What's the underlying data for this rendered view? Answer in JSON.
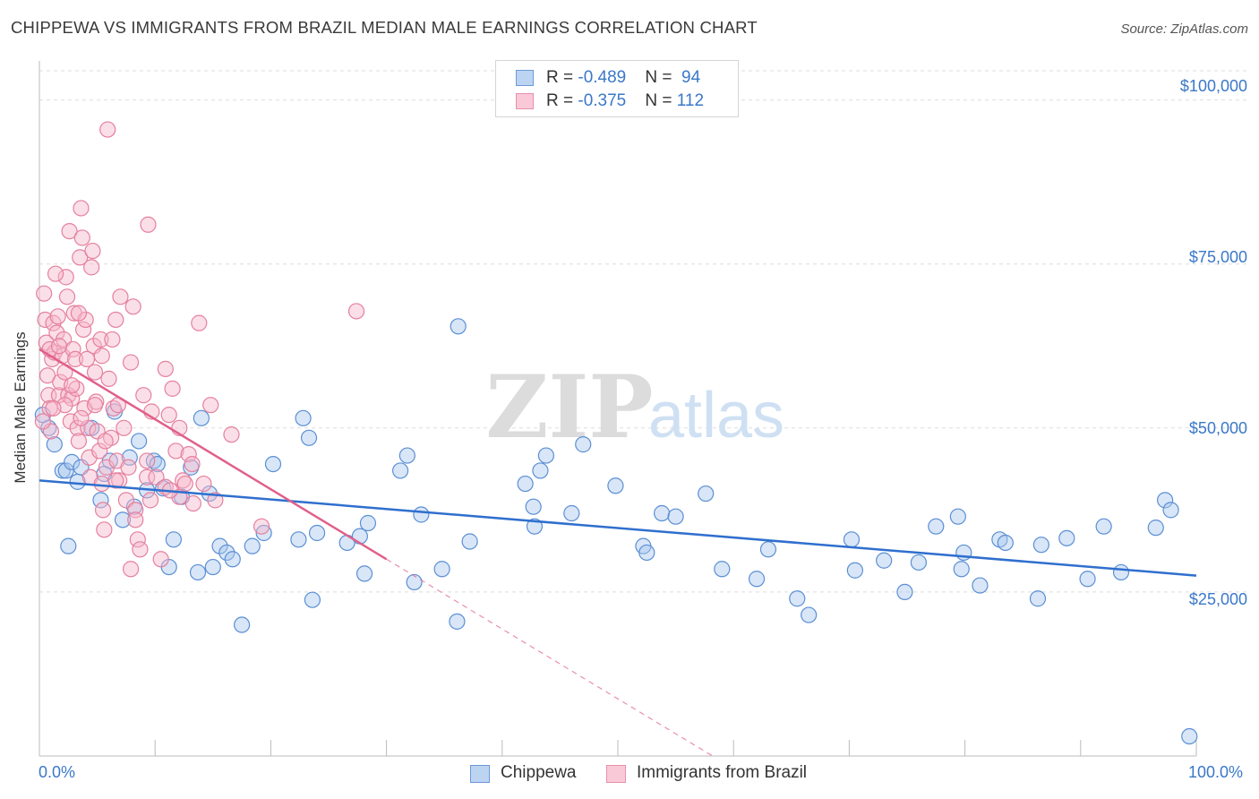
{
  "title": "CHIPPEWA VS IMMIGRANTS FROM BRAZIL MEDIAN MALE EARNINGS CORRELATION CHART",
  "source": "Source: ZipAtlas.com",
  "watermark": {
    "zip": "ZIP",
    "atlas": "atlas"
  },
  "legend": {
    "rows": [
      {
        "r_label": "R = ",
        "r_value": "-0.489",
        "n_label": "N = ",
        "n_value": "94"
      },
      {
        "r_label": "R = ",
        "r_value": "-0.375",
        "n_label": "N = ",
        "n_value": "112"
      }
    ]
  },
  "colors": {
    "chippewa_fill": "#a9c8ee",
    "chippewa_stroke": "#5b8fd4",
    "chippewa_line": "#2f6fce",
    "brazil_fill": "#f7b9cb",
    "brazil_stroke": "#e5809e",
    "brazil_line": "#e0608a",
    "tick_text": "#3a78c9",
    "grid": "#dddddd"
  },
  "chart_data": {
    "type": "scatter",
    "title": "CHIPPEWA VS IMMIGRANTS FROM BRAZIL MEDIAN MALE EARNINGS CORRELATION CHART",
    "xlabel": "",
    "ylabel": "Median Male Earnings",
    "xlim": [
      0,
      100
    ],
    "ylim": [
      0,
      105000
    ],
    "x_tick_labels": [
      "0.0%",
      "100.0%"
    ],
    "y_ticks": [
      {
        "value": 25000,
        "label": "$25,000"
      },
      {
        "value": 50000,
        "label": "$50,000"
      },
      {
        "value": 75000,
        "label": "$75,000"
      },
      {
        "value": 100000,
        "label": "$100,000"
      }
    ],
    "grid": "horizontal dashed",
    "legend_position": "top-center",
    "series": [
      {
        "name": "Chippewa",
        "r": -0.489,
        "n": 94,
        "trend": {
          "x": [
            0,
            100
          ],
          "y": [
            42000,
            27500
          ],
          "style": "solid"
        },
        "points": [
          [
            0.3,
            52000
          ],
          [
            0.8,
            50000
          ],
          [
            1.3,
            47500
          ],
          [
            2.0,
            43500
          ],
          [
            2.3,
            43500
          ],
          [
            2.5,
            32000
          ],
          [
            2.8,
            44800
          ],
          [
            3.3,
            41800
          ],
          [
            3.6,
            44000
          ],
          [
            5.3,
            39000
          ],
          [
            4.5,
            50000
          ],
          [
            5.6,
            43000
          ],
          [
            6.1,
            45000
          ],
          [
            6.5,
            52500
          ],
          [
            7.2,
            36000
          ],
          [
            7.8,
            45500
          ],
          [
            8.2,
            38000
          ],
          [
            8.6,
            48000
          ],
          [
            9.3,
            40500
          ],
          [
            9.9,
            45000
          ],
          [
            10.2,
            44500
          ],
          [
            10.7,
            40800
          ],
          [
            11.2,
            28800
          ],
          [
            11.6,
            33000
          ],
          [
            12.3,
            39500
          ],
          [
            13.1,
            44000
          ],
          [
            13.7,
            28000
          ],
          [
            14.0,
            51500
          ],
          [
            14.7,
            40000
          ],
          [
            15.0,
            28800
          ],
          [
            15.6,
            32000
          ],
          [
            16.2,
            31000
          ],
          [
            16.7,
            30000
          ],
          [
            17.5,
            20000
          ],
          [
            18.4,
            32000
          ],
          [
            19.4,
            34000
          ],
          [
            20.2,
            44500
          ],
          [
            22.4,
            33000
          ],
          [
            22.8,
            51500
          ],
          [
            23.3,
            48500
          ],
          [
            23.6,
            23800
          ],
          [
            24.0,
            34000
          ],
          [
            26.6,
            32500
          ],
          [
            27.7,
            33500
          ],
          [
            28.1,
            27800
          ],
          [
            28.4,
            35500
          ],
          [
            31.2,
            43500
          ],
          [
            31.8,
            45800
          ],
          [
            32.4,
            26500
          ],
          [
            33.0,
            36800
          ],
          [
            34.8,
            28500
          ],
          [
            36.1,
            20500
          ],
          [
            37.2,
            32700
          ],
          [
            42.0,
            41500
          ],
          [
            42.7,
            38000
          ],
          [
            42.8,
            35000
          ],
          [
            43.3,
            43500
          ],
          [
            43.8,
            45800
          ],
          [
            46.0,
            37000
          ],
          [
            47.0,
            47500
          ],
          [
            49.8,
            41200
          ],
          [
            52.2,
            32000
          ],
          [
            52.5,
            31000
          ],
          [
            53.8,
            37000
          ],
          [
            55.0,
            36500
          ],
          [
            57.6,
            40000
          ],
          [
            59.0,
            28500
          ],
          [
            62.0,
            27000
          ],
          [
            63.0,
            31500
          ],
          [
            65.5,
            24000
          ],
          [
            66.5,
            21500
          ],
          [
            70.2,
            33000
          ],
          [
            70.5,
            28300
          ],
          [
            73.0,
            29800
          ],
          [
            74.8,
            25000
          ],
          [
            76.0,
            29500
          ],
          [
            77.5,
            35000
          ],
          [
            79.4,
            36500
          ],
          [
            79.7,
            28500
          ],
          [
            79.9,
            31000
          ],
          [
            81.3,
            26000
          ],
          [
            83.0,
            33000
          ],
          [
            83.5,
            32500
          ],
          [
            86.3,
            24000
          ],
          [
            86.6,
            32200
          ],
          [
            88.8,
            33200
          ],
          [
            90.6,
            27000
          ],
          [
            92.0,
            35000
          ],
          [
            93.5,
            28000
          ],
          [
            96.5,
            34800
          ],
          [
            97.3,
            39000
          ],
          [
            97.8,
            37500
          ],
          [
            99.4,
            3000
          ],
          [
            36.2,
            65500
          ]
        ]
      },
      {
        "name": "Immigrants from Brazil",
        "r": -0.375,
        "n": 112,
        "trend": {
          "x": [
            0,
            30
          ],
          "y": [
            62000,
            30000
          ],
          "style": "solid",
          "extension": {
            "x": [
              30,
              100
            ],
            "y": [
              30000,
              -44500
            ],
            "style": "dashed"
          }
        },
        "points": [
          [
            0.4,
            70500
          ],
          [
            0.5,
            66500
          ],
          [
            0.6,
            63000
          ],
          [
            0.7,
            58000
          ],
          [
            0.8,
            55000
          ],
          [
            0.9,
            53000
          ],
          [
            1.0,
            49500
          ],
          [
            1.1,
            60500
          ],
          [
            1.2,
            66000
          ],
          [
            1.3,
            61500
          ],
          [
            1.5,
            64500
          ],
          [
            1.6,
            67000
          ],
          [
            1.7,
            55000
          ],
          [
            1.8,
            57000
          ],
          [
            2.0,
            61000
          ],
          [
            2.1,
            63500
          ],
          [
            2.2,
            58500
          ],
          [
            2.3,
            73000
          ],
          [
            2.4,
            70000
          ],
          [
            2.5,
            55000
          ],
          [
            2.6,
            80000
          ],
          [
            2.7,
            51000
          ],
          [
            2.8,
            54500
          ],
          [
            2.9,
            62000
          ],
          [
            3.0,
            67500
          ],
          [
            3.1,
            60500
          ],
          [
            3.2,
            56000
          ],
          [
            3.3,
            50000
          ],
          [
            3.4,
            48000
          ],
          [
            3.5,
            76000
          ],
          [
            3.6,
            83500
          ],
          [
            3.7,
            79000
          ],
          [
            3.8,
            65000
          ],
          [
            3.9,
            53000
          ],
          [
            4.0,
            66500
          ],
          [
            4.2,
            50000
          ],
          [
            4.3,
            45500
          ],
          [
            4.4,
            42500
          ],
          [
            4.5,
            74500
          ],
          [
            4.6,
            77000
          ],
          [
            4.7,
            62500
          ],
          [
            4.8,
            58500
          ],
          [
            4.9,
            54000
          ],
          [
            5.0,
            49500
          ],
          [
            5.2,
            46500
          ],
          [
            5.3,
            63500
          ],
          [
            5.4,
            41500
          ],
          [
            5.5,
            37500
          ],
          [
            5.6,
            34500
          ],
          [
            5.8,
            44000
          ],
          [
            6.0,
            57500
          ],
          [
            6.2,
            48500
          ],
          [
            6.4,
            53000
          ],
          [
            6.6,
            66500
          ],
          [
            6.7,
            45000
          ],
          [
            6.9,
            42000
          ],
          [
            7.0,
            70000
          ],
          [
            7.3,
            50000
          ],
          [
            7.5,
            39000
          ],
          [
            7.7,
            44000
          ],
          [
            7.9,
            60000
          ],
          [
            8.1,
            68500
          ],
          [
            8.3,
            37500
          ],
          [
            8.5,
            33000
          ],
          [
            8.7,
            31500
          ],
          [
            9.0,
            55000
          ],
          [
            9.3,
            42500
          ],
          [
            9.6,
            39000
          ],
          [
            10.1,
            42500
          ],
          [
            10.5,
            30000
          ],
          [
            10.9,
            59000
          ],
          [
            11.2,
            52000
          ],
          [
            11.5,
            56000
          ],
          [
            11.8,
            46500
          ],
          [
            12.1,
            39500
          ],
          [
            12.4,
            42000
          ],
          [
            12.9,
            46000
          ],
          [
            13.3,
            38500
          ],
          [
            13.8,
            66000
          ],
          [
            14.2,
            41500
          ],
          [
            14.8,
            53500
          ],
          [
            15.2,
            39000
          ],
          [
            16.6,
            49000
          ],
          [
            19.2,
            35000
          ],
          [
            27.4,
            67800
          ],
          [
            1.4,
            73500
          ],
          [
            2.2,
            53500
          ],
          [
            3.6,
            51500
          ],
          [
            4.1,
            60500
          ],
          [
            5.7,
            48000
          ],
          [
            6.3,
            63500
          ],
          [
            6.6,
            42000
          ],
          [
            7.9,
            28500
          ],
          [
            8.3,
            36000
          ],
          [
            9.3,
            45000
          ],
          [
            9.7,
            52500
          ],
          [
            10.9,
            41000
          ],
          [
            11.3,
            40500
          ],
          [
            12.1,
            50000
          ],
          [
            12.6,
            41500
          ],
          [
            13.2,
            44500
          ],
          [
            0.9,
            62000
          ],
          [
            1.7,
            62500
          ],
          [
            2.8,
            56500
          ],
          [
            3.4,
            67500
          ],
          [
            4.8,
            53500
          ],
          [
            5.4,
            61000
          ],
          [
            6.8,
            53500
          ],
          [
            9.4,
            81000
          ],
          [
            5.9,
            95500
          ],
          [
            0.3,
            51000
          ],
          [
            1.2,
            53000
          ]
        ]
      }
    ]
  }
}
